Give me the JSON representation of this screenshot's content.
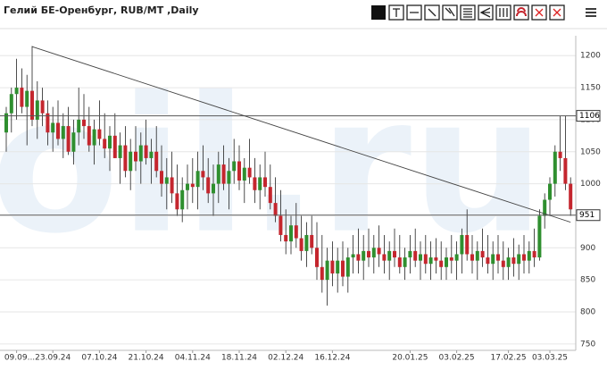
{
  "chart_data": {
    "type": "candlestick",
    "title": "Гелий БЕ-Оренбург, RUB/MT ,Daily",
    "watermark": "oil.ru",
    "categories": [
      null,
      null,
      "09.09...",
      null,
      null,
      null,
      null,
      null,
      null,
      "23.09.24",
      null,
      null,
      null,
      null,
      null,
      null,
      null,
      null,
      "07.10.24",
      null,
      null,
      null,
      null,
      null,
      null,
      null,
      null,
      "21.10.24",
      null,
      null,
      null,
      null,
      null,
      null,
      null,
      null,
      "04.11.24",
      null,
      null,
      null,
      null,
      null,
      null,
      null,
      null,
      "18.11.24",
      null,
      null,
      null,
      null,
      null,
      null,
      null,
      null,
      "02.12.24",
      null,
      null,
      null,
      null,
      null,
      null,
      null,
      null,
      "16.12.24",
      null,
      null,
      null,
      null,
      null,
      null,
      null,
      null,
      null,
      null,
      null,
      null,
      null,
      null,
      "20.01.25",
      null,
      null,
      null,
      null,
      null,
      null,
      null,
      null,
      "03.02.25",
      null,
      null,
      null,
      null,
      null,
      null,
      null,
      null,
      null,
      "17.02.25",
      null,
      null,
      null,
      null,
      null,
      null,
      null,
      "03.03.25",
      null,
      null,
      null,
      null
    ],
    "open": [
      1080,
      1110,
      1140,
      1150,
      1120,
      1145,
      1100,
      1130,
      1110,
      1080,
      1095,
      1070,
      1090,
      1050,
      1080,
      1100,
      1090,
      1060,
      1085,
      1070,
      1055,
      1075,
      1040,
      1060,
      1020,
      1050,
      1035,
      1060,
      1040,
      1050,
      1020,
      1000,
      1010,
      985,
      960,
      990,
      1000,
      995,
      1020,
      1010,
      985,
      1000,
      1030,
      1000,
      1020,
      1035,
      1005,
      1025,
      1010,
      990,
      1010,
      995,
      970,
      950,
      920,
      910,
      935,
      915,
      895,
      920,
      900,
      870,
      850,
      880,
      860,
      880,
      855,
      885,
      890,
      880,
      895,
      885,
      900,
      890,
      880,
      895,
      885,
      870,
      885,
      895,
      880,
      890,
      875,
      885,
      880,
      870,
      885,
      880,
      890,
      920,
      890,
      880,
      895,
      885,
      875,
      890,
      880,
      870,
      885,
      875,
      890,
      880,
      895,
      885,
      950,
      975,
      1000,
      1050,
      1040,
      1000
    ],
    "high": [
      1120,
      1150,
      1195,
      1180,
      1170,
      1215,
      1160,
      1150,
      1130,
      1120,
      1130,
      1110,
      1120,
      1100,
      1150,
      1140,
      1120,
      1100,
      1130,
      1110,
      1090,
      1110,
      1080,
      1090,
      1070,
      1090,
      1080,
      1100,
      1070,
      1090,
      1060,
      1040,
      1050,
      1030,
      1010,
      1030,
      1040,
      1050,
      1060,
      1040,
      1030,
      1050,
      1060,
      1040,
      1070,
      1060,
      1040,
      1070,
      1040,
      1030,
      1050,
      1030,
      1010,
      990,
      960,
      950,
      970,
      950,
      940,
      950,
      940,
      920,
      900,
      910,
      900,
      910,
      900,
      920,
      930,
      920,
      930,
      920,
      935,
      920,
      910,
      930,
      920,
      900,
      920,
      930,
      910,
      920,
      910,
      915,
      910,
      900,
      920,
      910,
      930,
      960,
      920,
      910,
      930,
      920,
      910,
      920,
      910,
      900,
      915,
      905,
      920,
      910,
      930,
      960,
      985,
      1010,
      1060,
      1106,
      1106,
      1010
    ],
    "low": [
      1050,
      1080,
      1100,
      1110,
      1060,
      1090,
      1070,
      1090,
      1060,
      1050,
      1060,
      1040,
      1045,
      1030,
      1060,
      1070,
      1050,
      1030,
      1060,
      1040,
      1020,
      1040,
      1000,
      1010,
      990,
      1020,
      1000,
      1030,
      1000,
      1010,
      980,
      960,
      970,
      950,
      940,
      960,
      970,
      960,
      990,
      970,
      950,
      970,
      990,
      960,
      1000,
      990,
      970,
      1000,
      970,
      960,
      980,
      960,
      940,
      910,
      890,
      890,
      900,
      880,
      870,
      890,
      850,
      830,
      810,
      840,
      830,
      840,
      830,
      860,
      860,
      850,
      870,
      860,
      870,
      860,
      850,
      870,
      860,
      850,
      860,
      870,
      850,
      860,
      850,
      860,
      850,
      850,
      860,
      850,
      860,
      880,
      860,
      850,
      870,
      860,
      850,
      860,
      850,
      850,
      855,
      850,
      860,
      860,
      870,
      880,
      930,
      950,
      980,
      1020,
      990,
      950
    ],
    "close": [
      1110,
      1140,
      1150,
      1120,
      1145,
      1100,
      1130,
      1110,
      1080,
      1095,
      1070,
      1090,
      1050,
      1080,
      1100,
      1090,
      1060,
      1085,
      1070,
      1055,
      1075,
      1040,
      1060,
      1020,
      1050,
      1035,
      1060,
      1040,
      1050,
      1020,
      1000,
      1010,
      985,
      960,
      990,
      1000,
      995,
      1020,
      1010,
      985,
      1000,
      1030,
      1000,
      1020,
      1035,
      1005,
      1025,
      1010,
      990,
      1010,
      995,
      970,
      950,
      920,
      910,
      935,
      915,
      895,
      920,
      900,
      870,
      850,
      880,
      860,
      880,
      855,
      885,
      890,
      880,
      895,
      885,
      900,
      890,
      880,
      895,
      885,
      870,
      885,
      895,
      880,
      890,
      875,
      885,
      880,
      870,
      885,
      880,
      890,
      920,
      890,
      880,
      895,
      885,
      875,
      890,
      880,
      870,
      885,
      875,
      890,
      880,
      895,
      885,
      950,
      975,
      1000,
      1050,
      1040,
      1000,
      960
    ],
    "up_color": "#2f8f2f",
    "down_color": "#c4262e",
    "ylim": [
      740,
      1231
    ],
    "yticks": [
      750,
      800,
      850,
      900,
      950,
      1000,
      1050,
      1100,
      1150,
      1200
    ],
    "grid": true,
    "hlines": [
      {
        "value": 1106,
        "label": "1106"
      },
      {
        "value": 951,
        "label": "951"
      }
    ],
    "trendline": {
      "start": [
        5,
        1214
      ],
      "end": [
        109,
        940
      ]
    }
  }
}
